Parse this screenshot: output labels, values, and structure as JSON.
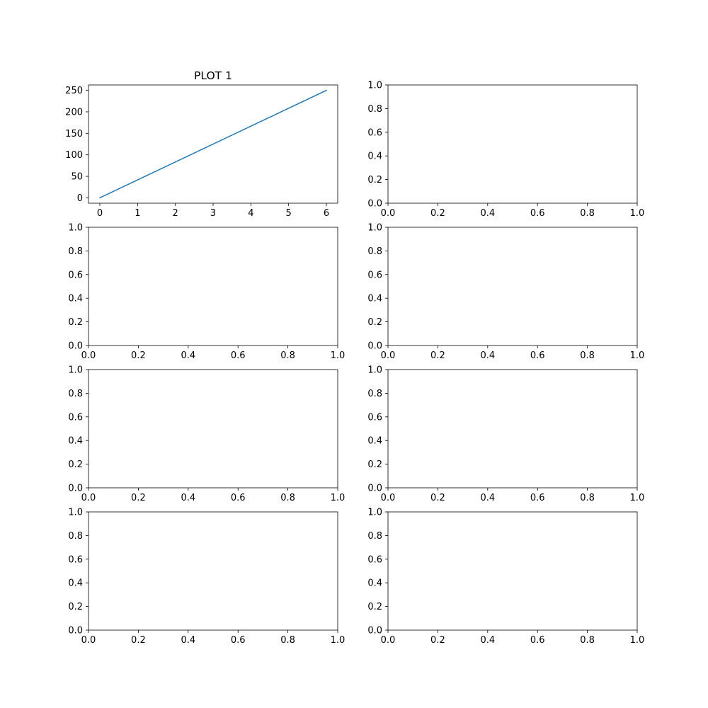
{
  "chart_data": [
    {
      "type": "line",
      "title": "PLOT 1",
      "xlim": [
        -0.3,
        6.3
      ],
      "ylim": [
        -12.5,
        262.5
      ],
      "xticks": [
        0,
        1,
        2,
        3,
        4,
        5,
        6
      ],
      "xtick_labels": [
        "0",
        "1",
        "2",
        "3",
        "4",
        "5",
        "6"
      ],
      "yticks": [
        0,
        50,
        100,
        150,
        200,
        250
      ],
      "ytick_labels": [
        "0",
        "50",
        "100",
        "150",
        "200",
        "250"
      ],
      "grid": false,
      "series": [
        {
          "x": [
            0,
            6
          ],
          "y": [
            0,
            250
          ],
          "color": "#1f77b4"
        }
      ]
    },
    {
      "type": "line",
      "title": "",
      "xlim": [
        0,
        1
      ],
      "ylim": [
        0,
        1
      ],
      "xticks": [
        0,
        0.2,
        0.4,
        0.6,
        0.8,
        1.0
      ],
      "xtick_labels": [
        "0.0",
        "0.2",
        "0.4",
        "0.6",
        "0.8",
        "1.0"
      ],
      "yticks": [
        0,
        0.2,
        0.4,
        0.6,
        0.8,
        1.0
      ],
      "ytick_labels": [
        "0.0",
        "0.2",
        "0.4",
        "0.6",
        "0.8",
        "1.0"
      ],
      "grid": false,
      "series": []
    },
    {
      "type": "line",
      "title": "",
      "xlim": [
        0,
        1
      ],
      "ylim": [
        0,
        1
      ],
      "xticks": [
        0,
        0.2,
        0.4,
        0.6,
        0.8,
        1.0
      ],
      "xtick_labels": [
        "0.0",
        "0.2",
        "0.4",
        "0.6",
        "0.8",
        "1.0"
      ],
      "yticks": [
        0,
        0.2,
        0.4,
        0.6,
        0.8,
        1.0
      ],
      "ytick_labels": [
        "0.0",
        "0.2",
        "0.4",
        "0.6",
        "0.8",
        "1.0"
      ],
      "grid": false,
      "series": []
    },
    {
      "type": "line",
      "title": "",
      "xlim": [
        0,
        1
      ],
      "ylim": [
        0,
        1
      ],
      "xticks": [
        0,
        0.2,
        0.4,
        0.6,
        0.8,
        1.0
      ],
      "xtick_labels": [
        "0.0",
        "0.2",
        "0.4",
        "0.6",
        "0.8",
        "1.0"
      ],
      "yticks": [
        0,
        0.2,
        0.4,
        0.6,
        0.8,
        1.0
      ],
      "ytick_labels": [
        "0.0",
        "0.2",
        "0.4",
        "0.6",
        "0.8",
        "1.0"
      ],
      "grid": false,
      "series": []
    },
    {
      "type": "line",
      "title": "",
      "xlim": [
        0,
        1
      ],
      "ylim": [
        0,
        1
      ],
      "xticks": [
        0,
        0.2,
        0.4,
        0.6,
        0.8,
        1.0
      ],
      "xtick_labels": [
        "0.0",
        "0.2",
        "0.4",
        "0.6",
        "0.8",
        "1.0"
      ],
      "yticks": [
        0,
        0.2,
        0.4,
        0.6,
        0.8,
        1.0
      ],
      "ytick_labels": [
        "0.0",
        "0.2",
        "0.4",
        "0.6",
        "0.8",
        "1.0"
      ],
      "grid": false,
      "series": []
    },
    {
      "type": "line",
      "title": "",
      "xlim": [
        0,
        1
      ],
      "ylim": [
        0,
        1
      ],
      "xticks": [
        0,
        0.2,
        0.4,
        0.6,
        0.8,
        1.0
      ],
      "xtick_labels": [
        "0.0",
        "0.2",
        "0.4",
        "0.6",
        "0.8",
        "1.0"
      ],
      "yticks": [
        0,
        0.2,
        0.4,
        0.6,
        0.8,
        1.0
      ],
      "ytick_labels": [
        "0.0",
        "0.2",
        "0.4",
        "0.6",
        "0.8",
        "1.0"
      ],
      "grid": false,
      "series": []
    },
    {
      "type": "line",
      "title": "",
      "xlim": [
        0,
        1
      ],
      "ylim": [
        0,
        1
      ],
      "xticks": [
        0,
        0.2,
        0.4,
        0.6,
        0.8,
        1.0
      ],
      "xtick_labels": [
        "0.0",
        "0.2",
        "0.4",
        "0.6",
        "0.8",
        "1.0"
      ],
      "yticks": [
        0,
        0.2,
        0.4,
        0.6,
        0.8,
        1.0
      ],
      "ytick_labels": [
        "0.0",
        "0.2",
        "0.4",
        "0.6",
        "0.8",
        "1.0"
      ],
      "grid": false,
      "series": []
    },
    {
      "type": "line",
      "title": "",
      "xlim": [
        0,
        1
      ],
      "ylim": [
        0,
        1
      ],
      "xticks": [
        0,
        0.2,
        0.4,
        0.6,
        0.8,
        1.0
      ],
      "xtick_labels": [
        "0.0",
        "0.2",
        "0.4",
        "0.6",
        "0.8",
        "1.0"
      ],
      "yticks": [
        0,
        0.2,
        0.4,
        0.6,
        0.8,
        1.0
      ],
      "ytick_labels": [
        "0.0",
        "0.2",
        "0.4",
        "0.6",
        "0.8",
        "1.0"
      ],
      "grid": false,
      "series": []
    }
  ]
}
